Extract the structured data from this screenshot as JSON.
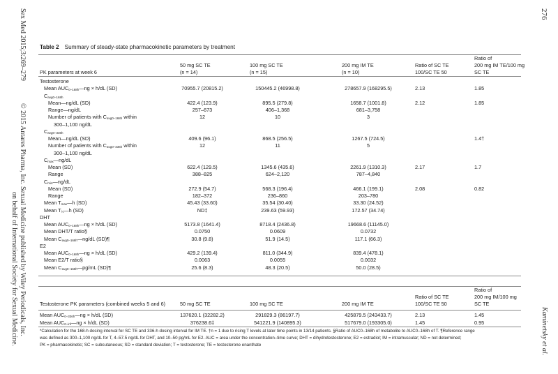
{
  "margin": {
    "journal": "Sex Med 2015;3:269–279",
    "copyright_line1": "© 2015 Antares Pharma, Inc. Sexual Medicine published by Wiley Periodicals, Inc.",
    "copyright_line2": "on behalf of International Society for Sexual Medicine.",
    "page_number": "276",
    "running_head": "Kaminetsky et al."
  },
  "table": {
    "label": "Table 2",
    "caption": "Summary of steady-state pharmacokinetic parameters by treatment",
    "header1": {
      "param": "PK parameters at week 6",
      "c1a": "50 mg SC TE",
      "c1b": "(n = 14)",
      "c2a": "100 mg SC TE",
      "c2b": "(n = 15)",
      "c3a": "200 mg IM TE",
      "c3b": "(n = 10)",
      "r1a": "Ratio of SC TE",
      "r1b": "100/SC TE 50",
      "r2a": "Ratio of",
      "r2b": "200 mg IM TE/100 mg",
      "r2c": "SC TE"
    },
    "rows": [
      {
        "i": 0,
        "l": "Testosterone"
      },
      {
        "i": 1,
        "l": "Mean AUC",
        "s": "0–168h",
        "p": "—ng × h/dL (SD)",
        "c": [
          "70955.7 (20815.2)",
          "150445.2 (46998.8)",
          "278657.9 (168295.5)",
          "2.13",
          "1.85"
        ]
      },
      {
        "i": 1,
        "l": "C",
        "s": "avg0–168h"
      },
      {
        "i": 2,
        "l": "Mean—ng/dL (SD)",
        "c": [
          "422.4 (123.9)",
          "895.5 (279.8)",
          "1658.7 (1001.8)",
          "2.12",
          "1.85"
        ]
      },
      {
        "i": 2,
        "l": "Range—ng/dL",
        "c": [
          "257–673",
          "406–1,368",
          "681–3,758",
          "",
          ""
        ]
      },
      {
        "i": 2,
        "l": "Number of patients with C",
        "s": "avg0–168h",
        "p": " within",
        "c": [
          "12",
          "10",
          "3",
          "",
          ""
        ]
      },
      {
        "i": 3,
        "l": "300–1,100 ng/dL"
      },
      {
        "i": 1,
        "l": "C",
        "s": "avg0–336h"
      },
      {
        "i": 2,
        "l": "Mean—ng/dL (SD)",
        "c": [
          "409.6 (96.1)",
          "868.5 (256.5)",
          "1267.5 (724.5)",
          "",
          "1.4†"
        ]
      },
      {
        "i": 2,
        "l": "Number of patients with C",
        "s": "avg0–336h",
        "p": " within",
        "c": [
          "12",
          "11",
          "5",
          "",
          ""
        ]
      },
      {
        "i": 3,
        "l": "300–1,100 ng/dL"
      },
      {
        "i": 1,
        "l": "C",
        "s": "max",
        "p": "—ng/dL"
      },
      {
        "i": 2,
        "l": "Mean (SD)",
        "c": [
          "622.4 (129.5)",
          "1345.6 (435.6)",
          "2261.9 (1310.3)",
          "2.17",
          "1.7"
        ]
      },
      {
        "i": 2,
        "l": "Range",
        "c": [
          "388–825",
          "624–2,120",
          "787–4,840",
          "",
          ""
        ]
      },
      {
        "i": 1,
        "l": "C",
        "s": "min",
        "p": "—ng/dL"
      },
      {
        "i": 2,
        "l": "Mean (SD)",
        "c": [
          "272.9 (54.7)",
          "568.3 (196.4)",
          "466.1 (199.1)",
          "2.08",
          "0.82"
        ]
      },
      {
        "i": 2,
        "l": "Range",
        "c": [
          "182–372",
          "236–860",
          "203–780",
          "",
          ""
        ]
      },
      {
        "i": 1,
        "l": "Mean T",
        "s": "max",
        "p": "—h (SD)",
        "c": [
          "45.43 (33.60)",
          "35.54 (30.40)",
          "33.30 (24.52)",
          "",
          ""
        ]
      },
      {
        "i": 1,
        "l": "Mean T",
        "s": "½",
        "p": "—h (SD)",
        "c": [
          "ND‡",
          "239.63 (59.93)",
          "172.57 (34.74)",
          "",
          ""
        ]
      },
      {
        "i": 0,
        "l": "DHT"
      },
      {
        "i": 1,
        "l": "Mean AUC",
        "s": "0–168h",
        "p": "—ng × h/dL (SD)",
        "c": [
          "5173.8 (1641.4)",
          "8718.4 (2436.8)",
          "19668.6 (11145.0)",
          "",
          ""
        ]
      },
      {
        "i": 1,
        "l": "Mean DHT/T ratio§",
        "c": [
          "0.0750",
          "0.0609",
          "0.0732",
          "",
          ""
        ]
      },
      {
        "i": 1,
        "l": "Mean C",
        "s": "avg0–168h",
        "p": "—ng/dL (SD)¶",
        "c": [
          "30.8 (9.8)",
          "51.9 (14.5)",
          "117.1 (66.3)",
          "",
          ""
        ]
      },
      {
        "i": 0,
        "l": "E2"
      },
      {
        "i": 1,
        "l": "Mean AUC",
        "s": "0–168h",
        "p": "—ng × h/dL (SD)",
        "c": [
          "429.2 (139.4)",
          "811.0 (344.9)",
          "839.4 (478.1)",
          "",
          ""
        ]
      },
      {
        "i": 1,
        "l": "Mean E2/T ratio§",
        "c": [
          "0.0063",
          "0.0055",
          "0.0032",
          "",
          ""
        ]
      },
      {
        "i": 1,
        "l": "Mean C",
        "s": "avg0–168h",
        "p": "—pg/mL (SD)¶",
        "c": [
          "25.6 (8.3)",
          "48.3 (20.5)",
          "50.0 (28.5)",
          "",
          ""
        ]
      }
    ],
    "header2": {
      "param": "Testosterone PK parameters (combined weeks 5 and 6)",
      "c1": "50 mg SC TE",
      "c2": "100 mg SC TE",
      "c3": "200 mg IM TE",
      "r1a": "Ratio of SC TE",
      "r1b": "100/SC TE 50",
      "r2a": "Ratio of",
      "r2b": "200 mg IM/100 mg",
      "r2c": "SC TE"
    },
    "rows2": [
      {
        "i": 0,
        "l": "Mean AUC",
        "s": "0–336h",
        "p": "—ng × h/dL (SD)",
        "c": [
          "137620.1 (32282.2)",
          "291829.3 (86197.7)",
          "425879.5 (243433.7)",
          "2.13",
          "1.45"
        ]
      },
      {
        "i": 0,
        "l": "Mean AUC",
        "s": "0–inf",
        "p": "—ng × h/dL (SD)",
        "c": [
          "376238.6‡",
          "541221.9 (140895.3)",
          "517679.0 (193305.0)",
          "1.45",
          "0.95"
        ]
      }
    ],
    "footnotes": [
      "*Calculation for the 168-h dosing interval for SC TE and 336-h dosing interval for IM TE. †n = 1 due to rising T levels at later time points in 13/14 patients. §Ratio of AUC0–168h of metabolite to AUC0–168h of T. ¶Reference range",
      "was defined as 300–1,100 ng/dL for T, 4–57.5 ng/dL for DHT, and 10–50 pg/mL for E2. AUC = area under the concentration–time curve; DHT = dihydrotestosterone; E2 = estradiol; IM = intramuscular; ND = not determined;",
      "PK = pharmacokinetic; SC = subcutaneous; SD = standard deviation; T = testosterone; TE = testosterone enanthate"
    ]
  }
}
